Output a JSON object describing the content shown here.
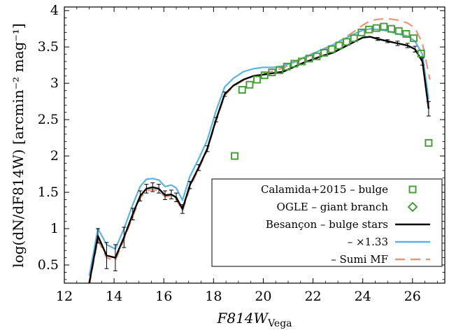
{
  "chart_data": {
    "type": "line",
    "xlabel": "F814W",
    "xlabel_sub": "Vega",
    "ylabel": "log(dN/dF814W) [arcmin⁻² mag⁻¹]",
    "xlim": [
      12,
      27.3
    ],
    "ylim": [
      0.25,
      4.05
    ],
    "xticks": [
      12,
      14,
      16,
      18,
      20,
      22,
      24,
      26
    ],
    "yticks": [
      0.5,
      1,
      1.5,
      2,
      2.5,
      3,
      3.5,
      4
    ],
    "xtick_labels": [
      "12",
      "14",
      "16",
      "18",
      "20",
      "22",
      "24",
      "26"
    ],
    "ytick_labels": [
      "0.5",
      "1",
      "1.5",
      "2",
      "2.5",
      "3",
      "3.5",
      "4"
    ],
    "grid": false,
    "legend_position": "bottom-right",
    "series": [
      {
        "name": "Calamida+2015 – bulge",
        "kind": "scatter",
        "marker": "square",
        "color": "#4a9e3c",
        "x": [
          18.85,
          19.15,
          19.45,
          19.75,
          20.05,
          20.35,
          20.65,
          20.95,
          21.25,
          21.55,
          21.85,
          22.15,
          22.45,
          22.75,
          23.05,
          23.35,
          23.65,
          23.95,
          24.25,
          24.55,
          24.85,
          25.15,
          25.45,
          25.75,
          26.05,
          26.35,
          26.65,
          26.95
        ],
        "y": [
          2.0,
          2.91,
          2.98,
          3.05,
          3.11,
          3.15,
          3.18,
          3.23,
          3.27,
          3.3,
          3.34,
          3.37,
          3.42,
          3.47,
          3.52,
          3.57,
          3.62,
          3.7,
          3.74,
          3.76,
          3.78,
          3.75,
          3.72,
          3.68,
          3.62,
          3.41,
          2.18,
          1.05
        ]
      },
      {
        "name": "OGLE – giant branch",
        "kind": "scatter",
        "marker": "diamond",
        "color": "#4a9e3c",
        "x": [],
        "y": []
      },
      {
        "name": "Besançon – bulge stars",
        "kind": "line",
        "color": "#000000",
        "x": [
          13.0,
          13.35,
          13.7,
          14.05,
          14.4,
          14.75,
          15.05,
          15.3,
          15.55,
          15.8,
          16.05,
          16.3,
          16.5,
          16.75,
          17.05,
          17.4,
          17.75,
          18.1,
          18.45,
          18.8,
          19.2,
          19.6,
          20.0,
          20.4,
          20.8,
          21.2,
          21.6,
          22.0,
          22.4,
          22.8,
          23.2,
          23.6,
          24.0,
          24.3,
          24.6,
          25.0,
          25.4,
          25.8,
          26.1,
          26.4,
          26.65
        ],
        "y": [
          0.25,
          0.9,
          0.63,
          0.6,
          0.88,
          1.2,
          1.45,
          1.55,
          1.57,
          1.55,
          1.46,
          1.47,
          1.43,
          1.27,
          1.6,
          1.84,
          2.1,
          2.5,
          2.85,
          2.97,
          3.05,
          3.1,
          3.12,
          3.14,
          3.16,
          3.22,
          3.28,
          3.33,
          3.38,
          3.42,
          3.49,
          3.56,
          3.63,
          3.64,
          3.61,
          3.58,
          3.55,
          3.52,
          3.47,
          3.3,
          2.65
        ]
      },
      {
        "name": "– ×1.33",
        "kind": "line",
        "color": "#5ab4e3",
        "x": [
          13.0,
          13.35,
          13.7,
          14.05,
          14.4,
          14.75,
          15.05,
          15.3,
          15.55,
          15.8,
          16.05,
          16.3,
          16.5,
          16.75,
          17.05,
          17.4,
          17.75,
          18.1,
          18.45,
          18.8,
          19.2,
          19.6,
          20.0,
          20.4,
          20.8,
          21.2,
          21.6,
          22.0,
          22.4,
          22.8,
          23.2,
          23.6,
          24.0,
          24.3,
          24.6,
          25.0,
          25.4,
          25.8,
          26.1,
          26.4,
          26.65
        ],
        "y": [
          0.35,
          1.0,
          0.78,
          0.72,
          1.0,
          1.33,
          1.58,
          1.68,
          1.69,
          1.67,
          1.58,
          1.6,
          1.56,
          1.39,
          1.72,
          1.96,
          2.22,
          2.62,
          2.95,
          3.07,
          3.16,
          3.2,
          3.22,
          3.22,
          3.24,
          3.29,
          3.35,
          3.41,
          3.47,
          3.53,
          3.6,
          3.67,
          3.73,
          3.75,
          3.74,
          3.72,
          3.68,
          3.65,
          3.58,
          3.4,
          2.78
        ]
      },
      {
        "name": "– Sumi MF",
        "kind": "line",
        "dashed": true,
        "color": "#e6957a",
        "x": [
          13.0,
          13.35,
          13.7,
          14.05,
          14.4,
          14.75,
          15.05,
          15.3,
          15.55,
          15.8,
          16.05,
          16.3,
          16.5,
          16.75,
          17.05,
          17.4,
          17.75,
          18.1,
          18.45,
          18.8,
          19.2,
          19.6,
          20.0,
          20.4,
          20.8,
          21.2,
          21.6,
          22.0,
          22.4,
          22.8,
          23.2,
          23.6,
          24.0,
          24.3,
          24.6,
          25.0,
          25.4,
          25.8,
          26.1,
          26.4,
          26.7
        ],
        "y": [
          0.22,
          0.85,
          0.6,
          0.56,
          0.85,
          1.17,
          1.42,
          1.52,
          1.54,
          1.52,
          1.44,
          1.45,
          1.41,
          1.24,
          1.57,
          1.82,
          2.08,
          2.48,
          2.83,
          2.96,
          3.04,
          3.1,
          3.13,
          3.17,
          3.21,
          3.28,
          3.34,
          3.4,
          3.46,
          3.52,
          3.61,
          3.7,
          3.8,
          3.86,
          3.88,
          3.89,
          3.87,
          3.83,
          3.76,
          3.55,
          3.05
        ]
      }
    ],
    "error_bars": {
      "x": [
        13.35,
        13.7,
        14.05,
        14.4,
        14.75,
        15.05,
        15.3,
        15.55,
        15.8,
        16.05,
        16.3,
        16.5,
        16.75,
        17.05,
        17.4,
        17.75,
        18.1,
        18.45,
        24.6,
        25.0,
        25.4,
        25.8,
        26.1,
        26.4,
        26.65
      ],
      "y": [
        0.9,
        0.63,
        0.6,
        0.88,
        1.2,
        1.45,
        1.55,
        1.57,
        1.55,
        1.46,
        1.47,
        1.43,
        1.27,
        1.6,
        1.84,
        2.1,
        2.5,
        2.85,
        3.61,
        3.58,
        3.55,
        3.52,
        3.47,
        3.3,
        2.65
      ],
      "err": [
        0.1,
        0.18,
        0.18,
        0.14,
        0.08,
        0.07,
        0.06,
        0.06,
        0.06,
        0.06,
        0.06,
        0.06,
        0.06,
        0.05,
        0.04,
        0.04,
        0.03,
        0.03,
        0.02,
        0.02,
        0.03,
        0.03,
        0.04,
        0.05,
        0.1
      ]
    }
  }
}
